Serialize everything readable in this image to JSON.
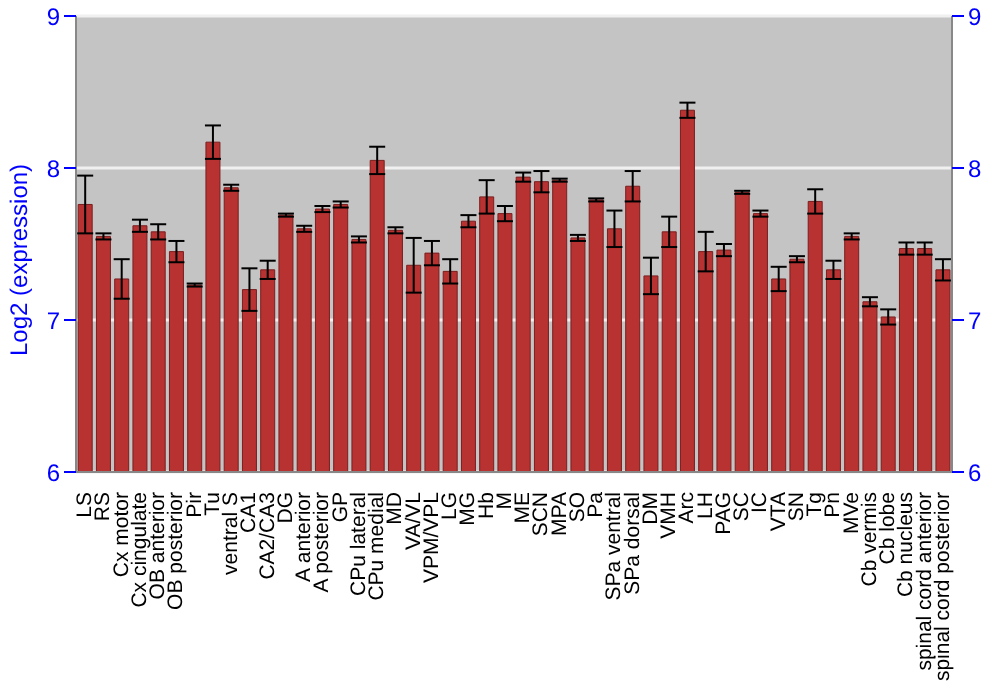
{
  "chart_data": {
    "type": "bar",
    "ylabel": "Log2 (expression)",
    "categories": [
      "LS",
      "RS",
      "Cx motor",
      "Cx cingulate",
      "OB anterior",
      "OB posterior",
      "Pir",
      "Tu",
      "ventral S",
      "CA1",
      "CA2/CA3",
      "DG",
      "A anterior",
      "A posterior",
      "GP",
      "CPu lateral",
      "CPu medial",
      "MD",
      "VA/VL",
      "VPM/VPL",
      "LG",
      "MG",
      "Hb",
      "M",
      "ME",
      "SCN",
      "MPA",
      "SO",
      "Pa",
      "SPa ventral",
      "SPa dorsal",
      "DM",
      "VMH",
      "Arc",
      "LH",
      "PAG",
      "SC",
      "IC",
      "VTA",
      "SN",
      "Tg",
      "Pn",
      "MVe",
      "Cb vermis",
      "Cb lobe",
      "Cb nucleus",
      "spinal cord anterior",
      "spinal cord posterior"
    ],
    "values": [
      7.76,
      7.55,
      7.27,
      7.62,
      7.58,
      7.45,
      7.23,
      8.17,
      7.87,
      7.2,
      7.33,
      7.69,
      7.6,
      7.73,
      7.76,
      7.53,
      8.05,
      7.59,
      7.36,
      7.44,
      7.32,
      7.65,
      7.81,
      7.7,
      7.94,
      7.91,
      7.92,
      7.54,
      7.79,
      7.6,
      7.88,
      7.29,
      7.58,
      8.38,
      7.45,
      7.46,
      7.84,
      7.7,
      7.27,
      7.4,
      7.78,
      7.33,
      7.55,
      7.12,
      7.02,
      7.47,
      7.47,
      7.33
    ],
    "errors": [
      0.19,
      0.02,
      0.13,
      0.04,
      0.05,
      0.07,
      0.01,
      0.11,
      0.02,
      0.14,
      0.06,
      0.01,
      0.02,
      0.02,
      0.02,
      0.02,
      0.09,
      0.02,
      0.18,
      0.08,
      0.08,
      0.04,
      0.11,
      0.05,
      0.03,
      0.07,
      0.01,
      0.02,
      0.01,
      0.12,
      0.1,
      0.12,
      0.1,
      0.05,
      0.13,
      0.04,
      0.01,
      0.02,
      0.08,
      0.02,
      0.08,
      0.06,
      0.02,
      0.03,
      0.05,
      0.04,
      0.04,
      0.07
    ],
    "color": "#b83232",
    "ylim": [
      6,
      9
    ],
    "yticks": [
      6,
      7,
      8,
      9
    ],
    "y2lim": [
      6,
      9
    ],
    "y2ticks": [
      6,
      7,
      8,
      9
    ],
    "grid": "y"
  }
}
